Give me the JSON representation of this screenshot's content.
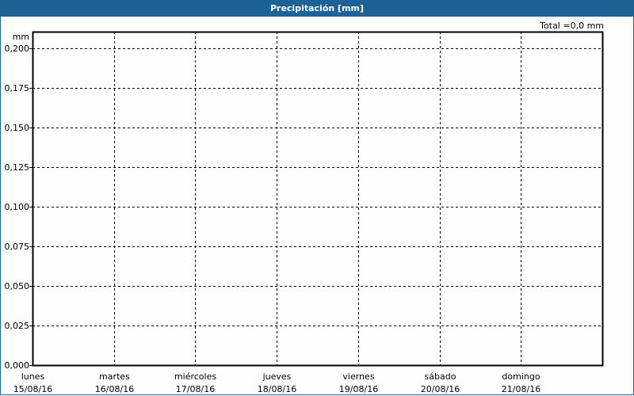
{
  "title": "Precipitación [mm]",
  "total_label": "Total =0,0 mm",
  "chart_data": {
    "type": "bar",
    "title": "Precipitación [mm]",
    "ylabel": "mm",
    "ylim": [
      0,
      0.2
    ],
    "yticks": [
      "0,000",
      "0,025",
      "0,050",
      "0,075",
      "0,100",
      "0,125",
      "0,150",
      "0,175",
      "0,200"
    ],
    "categories": [
      {
        "day": "lunes",
        "date": "15/08/16"
      },
      {
        "day": "martes",
        "date": "16/08/16"
      },
      {
        "day": "miércoles",
        "date": "17/08/16"
      },
      {
        "day": "jueves",
        "date": "18/08/16"
      },
      {
        "day": "viernes",
        "date": "19/08/16"
      },
      {
        "day": "sábado",
        "date": "20/08/16"
      },
      {
        "day": "domingo",
        "date": "21/08/16"
      }
    ],
    "values": [
      0,
      0,
      0,
      0,
      0,
      0,
      0
    ],
    "grid": true,
    "colors": {
      "titlebar": "#1d6296",
      "grid": "#000000"
    }
  }
}
